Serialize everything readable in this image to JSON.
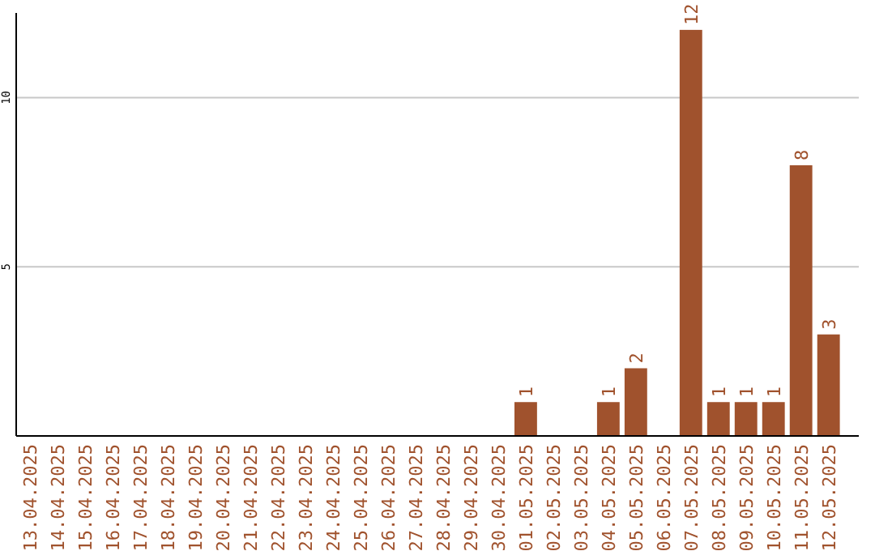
{
  "chart_data": {
    "type": "bar",
    "categories": [
      "13.04.2025",
      "14.04.2025",
      "15.04.2025",
      "16.04.2025",
      "17.04.2025",
      "18.04.2025",
      "19.04.2025",
      "20.04.2025",
      "21.04.2025",
      "22.04.2025",
      "23.04.2025",
      "24.04.2025",
      "25.04.2025",
      "26.04.2025",
      "27.04.2025",
      "28.04.2025",
      "29.04.2025",
      "30.04.2025",
      "01.05.2025",
      "02.05.2025",
      "03.05.2025",
      "04.05.2025",
      "05.05.2025",
      "06.05.2025",
      "07.05.2025",
      "08.05.2025",
      "09.05.2025",
      "10.05.2025",
      "11.05.2025",
      "12.05.2025"
    ],
    "values": [
      0,
      0,
      0,
      0,
      0,
      0,
      0,
      0,
      0,
      0,
      0,
      0,
      0,
      0,
      0,
      0,
      0,
      0,
      1,
      0,
      0,
      1,
      2,
      0,
      12,
      1,
      1,
      1,
      8,
      3
    ],
    "value_labels": [
      null,
      null,
      null,
      null,
      null,
      null,
      null,
      null,
      null,
      null,
      null,
      null,
      null,
      null,
      null,
      null,
      null,
      null,
      "1",
      null,
      null,
      "1",
      "2",
      null,
      "12",
      "1",
      "1",
      "1",
      "8",
      "3"
    ],
    "color": "#a0522d",
    "ylim": [
      0,
      12.5
    ],
    "yticks": [
      5,
      10
    ],
    "grid": "y"
  }
}
